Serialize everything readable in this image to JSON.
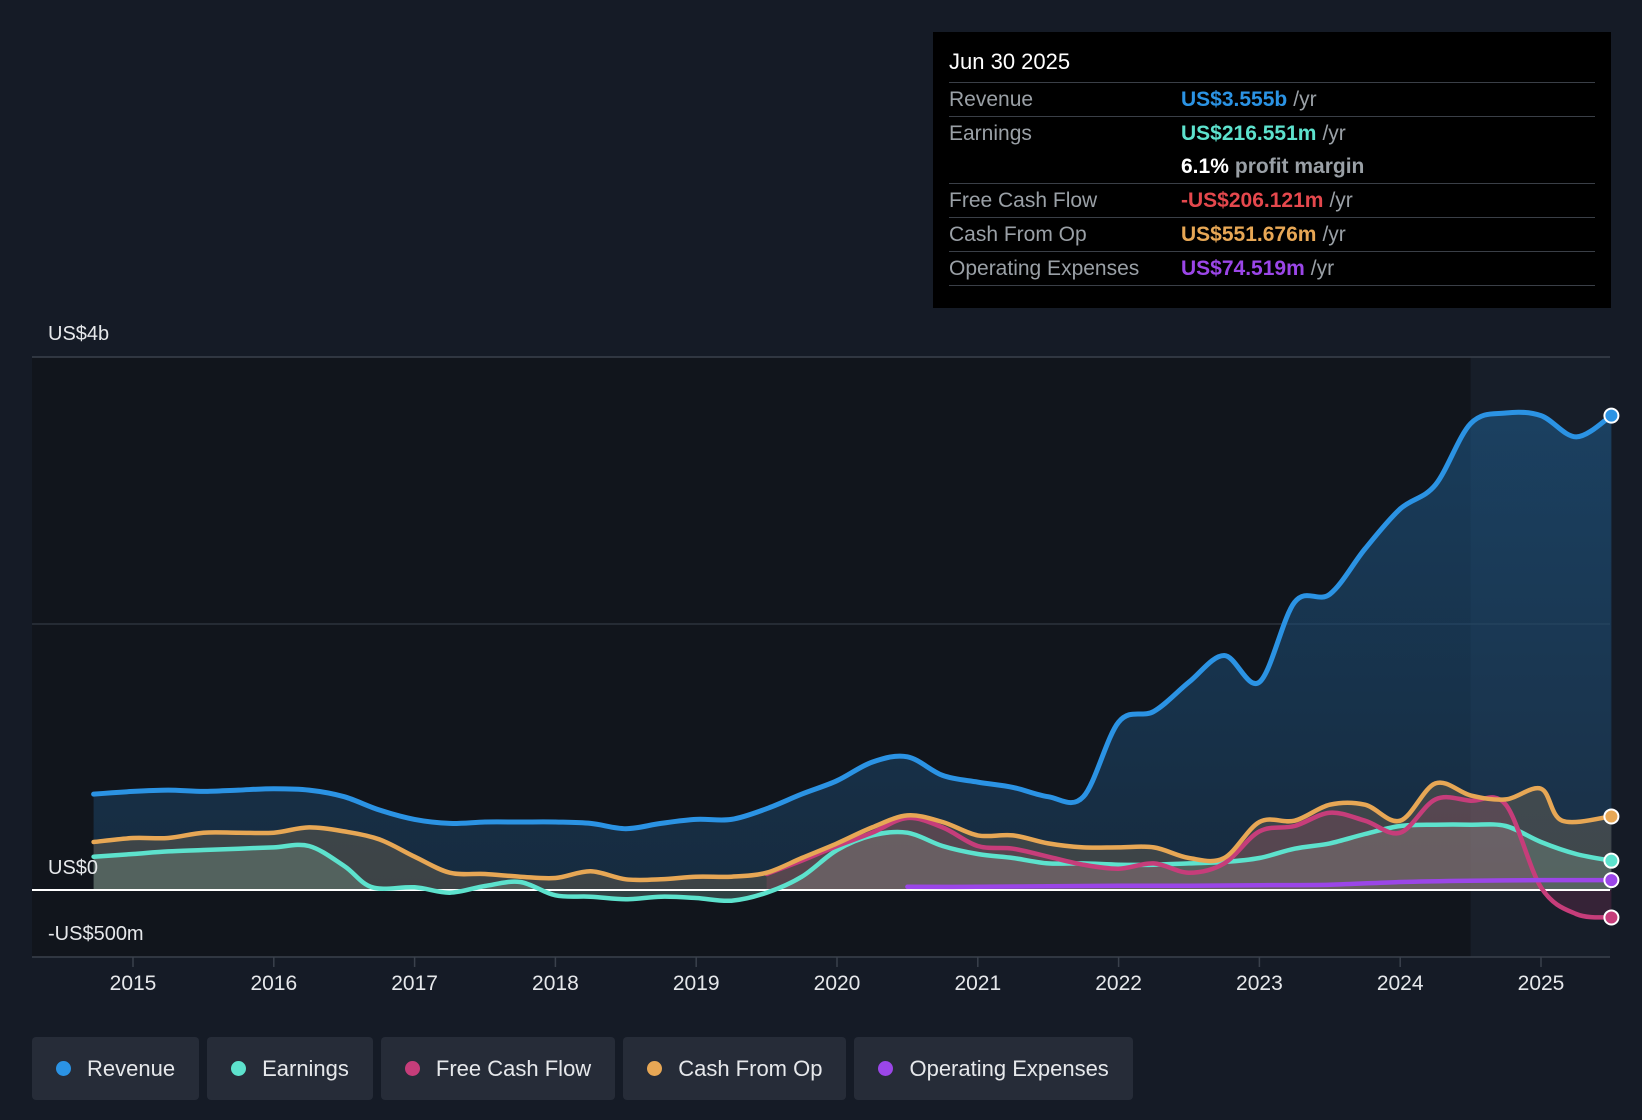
{
  "chart_data": {
    "type": "area",
    "title": "",
    "x_range": [
      2014.3,
      2025.5
    ],
    "ylim": [
      -0.25,
      2.0
    ],
    "y_axis_labels": [
      {
        "label": "US$4b",
        "value": 2.0
      },
      {
        "label": "US$0",
        "value": 0
      },
      {
        "label": "-US$500m",
        "value": -0.25
      }
    ],
    "x_ticks": [
      "2015",
      "2016",
      "2017",
      "2018",
      "2019",
      "2020",
      "2021",
      "2022",
      "2023",
      "2024",
      "2025"
    ],
    "x_tick_values": [
      2015,
      2016,
      2017,
      2018,
      2019,
      2020,
      2021,
      2022,
      2023,
      2024,
      2025
    ],
    "highlight_start": 2024.5,
    "series": [
      {
        "name": "Revenue",
        "color": "#2b93e4",
        "points": [
          [
            2014.72,
            0.36
          ],
          [
            2015.0,
            0.37
          ],
          [
            2015.25,
            0.375
          ],
          [
            2015.5,
            0.37
          ],
          [
            2015.75,
            0.375
          ],
          [
            2016.0,
            0.38
          ],
          [
            2016.25,
            0.375
          ],
          [
            2016.5,
            0.35
          ],
          [
            2016.75,
            0.3
          ],
          [
            2017.0,
            0.265
          ],
          [
            2017.25,
            0.25
          ],
          [
            2017.5,
            0.255
          ],
          [
            2017.75,
            0.255
          ],
          [
            2018.0,
            0.255
          ],
          [
            2018.25,
            0.25
          ],
          [
            2018.5,
            0.23
          ],
          [
            2018.75,
            0.25
          ],
          [
            2019.0,
            0.265
          ],
          [
            2019.25,
            0.265
          ],
          [
            2019.5,
            0.305
          ],
          [
            2019.75,
            0.36
          ],
          [
            2020.0,
            0.41
          ],
          [
            2020.25,
            0.48
          ],
          [
            2020.5,
            0.5
          ],
          [
            2020.75,
            0.43
          ],
          [
            2021.0,
            0.405
          ],
          [
            2021.25,
            0.385
          ],
          [
            2021.5,
            0.35
          ],
          [
            2021.75,
            0.35
          ],
          [
            2022.0,
            0.63
          ],
          [
            2022.25,
            0.67
          ],
          [
            2022.5,
            0.78
          ],
          [
            2022.75,
            0.88
          ],
          [
            2023.0,
            0.78
          ],
          [
            2023.25,
            1.08
          ],
          [
            2023.5,
            1.11
          ],
          [
            2023.75,
            1.28
          ],
          [
            2024.0,
            1.43
          ],
          [
            2024.25,
            1.52
          ],
          [
            2024.5,
            1.75
          ],
          [
            2024.75,
            1.79
          ],
          [
            2025.0,
            1.78
          ],
          [
            2025.25,
            1.7
          ],
          [
            2025.5,
            1.78
          ]
        ]
      },
      {
        "name": "Earnings",
        "color": "#5de2cd",
        "points": [
          [
            2014.72,
            0.125
          ],
          [
            2015.0,
            0.135
          ],
          [
            2015.25,
            0.145
          ],
          [
            2015.5,
            0.15
          ],
          [
            2015.75,
            0.155
          ],
          [
            2016.0,
            0.16
          ],
          [
            2016.25,
            0.165
          ],
          [
            2016.5,
            0.09
          ],
          [
            2016.7,
            0.01
          ],
          [
            2017.0,
            0.01
          ],
          [
            2017.25,
            -0.01
          ],
          [
            2017.5,
            0.015
          ],
          [
            2017.75,
            0.03
          ],
          [
            2018.0,
            -0.02
          ],
          [
            2018.25,
            -0.025
          ],
          [
            2018.5,
            -0.035
          ],
          [
            2018.75,
            -0.025
          ],
          [
            2019.0,
            -0.03
          ],
          [
            2019.25,
            -0.04
          ],
          [
            2019.5,
            -0.01
          ],
          [
            2019.75,
            0.05
          ],
          [
            2020.0,
            0.15
          ],
          [
            2020.25,
            0.205
          ],
          [
            2020.5,
            0.215
          ],
          [
            2020.75,
            0.165
          ],
          [
            2021.0,
            0.135
          ],
          [
            2021.25,
            0.12
          ],
          [
            2021.5,
            0.1
          ],
          [
            2021.75,
            0.1
          ],
          [
            2022.0,
            0.095
          ],
          [
            2022.25,
            0.095
          ],
          [
            2022.5,
            0.1
          ],
          [
            2022.75,
            0.105
          ],
          [
            2023.0,
            0.12
          ],
          [
            2023.25,
            0.155
          ],
          [
            2023.5,
            0.175
          ],
          [
            2023.75,
            0.21
          ],
          [
            2024.0,
            0.24
          ],
          [
            2024.25,
            0.245
          ],
          [
            2024.5,
            0.245
          ],
          [
            2024.75,
            0.24
          ],
          [
            2025.0,
            0.18
          ],
          [
            2025.25,
            0.135
          ],
          [
            2025.5,
            0.11
          ]
        ]
      },
      {
        "name": "Free Cash Flow",
        "color": "#c63d7a",
        "points": [
          [
            2019.5,
            0.06
          ],
          [
            2019.75,
            0.11
          ],
          [
            2020.0,
            0.165
          ],
          [
            2020.25,
            0.215
          ],
          [
            2020.5,
            0.27
          ],
          [
            2020.75,
            0.235
          ],
          [
            2021.0,
            0.165
          ],
          [
            2021.25,
            0.155
          ],
          [
            2021.5,
            0.125
          ],
          [
            2021.75,
            0.095
          ],
          [
            2022.0,
            0.08
          ],
          [
            2022.25,
            0.1
          ],
          [
            2022.5,
            0.065
          ],
          [
            2022.75,
            0.1
          ],
          [
            2023.0,
            0.22
          ],
          [
            2023.25,
            0.24
          ],
          [
            2023.5,
            0.29
          ],
          [
            2023.75,
            0.26
          ],
          [
            2024.0,
            0.215
          ],
          [
            2024.25,
            0.34
          ],
          [
            2024.5,
            0.335
          ],
          [
            2024.75,
            0.32
          ],
          [
            2025.0,
            0.01
          ],
          [
            2025.25,
            -0.09
          ],
          [
            2025.5,
            -0.103
          ]
        ]
      },
      {
        "name": "Cash From Op",
        "color": "#e7a755",
        "points": [
          [
            2014.72,
            0.18
          ],
          [
            2015.0,
            0.195
          ],
          [
            2015.25,
            0.195
          ],
          [
            2015.5,
            0.215
          ],
          [
            2015.75,
            0.215
          ],
          [
            2016.0,
            0.215
          ],
          [
            2016.25,
            0.235
          ],
          [
            2016.5,
            0.22
          ],
          [
            2016.75,
            0.19
          ],
          [
            2017.0,
            0.125
          ],
          [
            2017.25,
            0.065
          ],
          [
            2017.5,
            0.06
          ],
          [
            2017.75,
            0.05
          ],
          [
            2018.0,
            0.045
          ],
          [
            2018.25,
            0.07
          ],
          [
            2018.5,
            0.04
          ],
          [
            2018.75,
            0.04
          ],
          [
            2019.0,
            0.05
          ],
          [
            2019.25,
            0.05
          ],
          [
            2019.5,
            0.065
          ],
          [
            2019.75,
            0.12
          ],
          [
            2020.0,
            0.175
          ],
          [
            2020.25,
            0.235
          ],
          [
            2020.5,
            0.28
          ],
          [
            2020.75,
            0.255
          ],
          [
            2021.0,
            0.205
          ],
          [
            2021.25,
            0.205
          ],
          [
            2021.5,
            0.175
          ],
          [
            2021.75,
            0.16
          ],
          [
            2022.0,
            0.16
          ],
          [
            2022.25,
            0.16
          ],
          [
            2022.5,
            0.12
          ],
          [
            2022.75,
            0.12
          ],
          [
            2023.0,
            0.255
          ],
          [
            2023.25,
            0.26
          ],
          [
            2023.5,
            0.32
          ],
          [
            2023.75,
            0.32
          ],
          [
            2024.0,
            0.26
          ],
          [
            2024.25,
            0.4
          ],
          [
            2024.5,
            0.355
          ],
          [
            2024.75,
            0.34
          ],
          [
            2025.0,
            0.38
          ],
          [
            2025.15,
            0.26
          ],
          [
            2025.5,
            0.276
          ]
        ]
      },
      {
        "name": "Operating Expenses",
        "color": "#9b46e8",
        "points": [
          [
            2020.5,
            0.012
          ],
          [
            2021.0,
            0.012
          ],
          [
            2021.5,
            0.014
          ],
          [
            2022.0,
            0.016
          ],
          [
            2022.5,
            0.016
          ],
          [
            2023.0,
            0.018
          ],
          [
            2023.5,
            0.02
          ],
          [
            2024.0,
            0.03
          ],
          [
            2024.5,
            0.035
          ],
          [
            2025.0,
            0.037
          ],
          [
            2025.5,
            0.037
          ]
        ]
      }
    ]
  },
  "tooltip": {
    "date": "Jun 30 2025",
    "revenue_label": "Revenue",
    "revenue_value": "US$3.555b",
    "revenue_unit": "/yr",
    "earnings_label": "Earnings",
    "earnings_value": "US$216.551m",
    "earnings_unit": "/yr",
    "margin_value": "6.1%",
    "margin_text": "profit margin",
    "fcf_label": "Free Cash Flow",
    "fcf_value": "-US$206.121m",
    "fcf_unit": "/yr",
    "cfo_label": "Cash From Op",
    "cfo_value": "US$551.676m",
    "cfo_unit": "/yr",
    "opex_label": "Operating Expenses",
    "opex_value": "US$74.519m",
    "opex_unit": "/yr",
    "colors": {
      "revenue": "#2b93e4",
      "earnings": "#5de2cd",
      "fcf": "#e5484d",
      "cfo": "#e7a755",
      "opex": "#9b46e8"
    }
  },
  "legend": [
    {
      "label": "Revenue",
      "color": "#2b93e4"
    },
    {
      "label": "Earnings",
      "color": "#5de2cd"
    },
    {
      "label": "Free Cash Flow",
      "color": "#c63d7a"
    },
    {
      "label": "Cash From Op",
      "color": "#e7a755"
    },
    {
      "label": "Operating Expenses",
      "color": "#9b46e8"
    }
  ]
}
